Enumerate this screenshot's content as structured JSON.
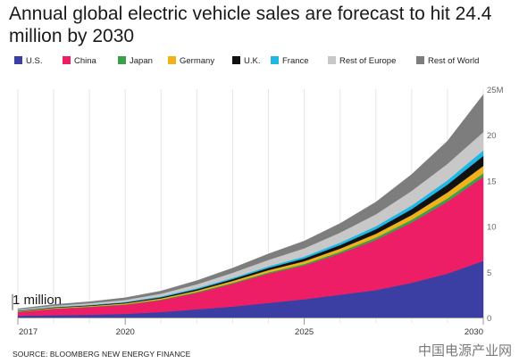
{
  "chart_data": {
    "type": "area",
    "stacked": true,
    "title": "Annual global electric vehicle sales are forecast to hit 24.4 million by 2030",
    "xlabel": "",
    "ylabel": "",
    "x": [
      2017,
      2018,
      2019,
      2020,
      2021,
      2022,
      2023,
      2024,
      2025,
      2026,
      2027,
      2028,
      2029,
      2030
    ],
    "xlim": [
      2017,
      2030
    ],
    "ylim": [
      0,
      25
    ],
    "x_ticks": [
      "2017",
      "2020",
      "2025",
      "2030"
    ],
    "y_ticks": [
      "0",
      "5",
      "10",
      "15",
      "20",
      "25M"
    ],
    "grid": "vertical",
    "legend_position": "top",
    "annotation": "1 million",
    "series": [
      {
        "name": "U.S.",
        "color": "#3b3ea3",
        "values": [
          0.2,
          0.25,
          0.3,
          0.4,
          0.6,
          0.9,
          1.2,
          1.6,
          2.0,
          2.5,
          3.0,
          3.8,
          4.8,
          6.2
        ]
      },
      {
        "name": "China",
        "color": "#ee1e66",
        "values": [
          0.4,
          0.7,
          0.85,
          1.0,
          1.3,
          1.8,
          2.5,
          3.2,
          3.7,
          4.5,
          5.5,
          6.6,
          7.9,
          9.2
        ]
      },
      {
        "name": "Japan",
        "color": "#3aa04a",
        "values": [
          0.03,
          0.04,
          0.04,
          0.05,
          0.07,
          0.09,
          0.11,
          0.14,
          0.16,
          0.2,
          0.25,
          0.3,
          0.35,
          0.4
        ]
      },
      {
        "name": "Germany",
        "color": "#f0b21a",
        "values": [
          0.05,
          0.07,
          0.08,
          0.1,
          0.13,
          0.16,
          0.2,
          0.25,
          0.3,
          0.35,
          0.42,
          0.52,
          0.65,
          0.8
        ]
      },
      {
        "name": "U.K.",
        "color": "#111111",
        "values": [
          0.05,
          0.06,
          0.07,
          0.09,
          0.12,
          0.15,
          0.2,
          0.24,
          0.3,
          0.38,
          0.5,
          0.65,
          0.85,
          1.1
        ]
      },
      {
        "name": "France",
        "color": "#1fb7e6",
        "values": [
          0.03,
          0.04,
          0.05,
          0.07,
          0.09,
          0.12,
          0.14,
          0.18,
          0.22,
          0.27,
          0.33,
          0.4,
          0.48,
          0.6
        ]
      },
      {
        "name": "Rest of Europe",
        "color": "#c8c8c8",
        "values": [
          0.1,
          0.13,
          0.17,
          0.22,
          0.3,
          0.42,
          0.55,
          0.7,
          0.9,
          1.1,
          1.3,
          1.6,
          1.8,
          2.0
        ]
      },
      {
        "name": "Rest of World",
        "color": "#7d7d7d",
        "values": [
          0.1,
          0.14,
          0.18,
          0.24,
          0.3,
          0.4,
          0.52,
          0.66,
          0.8,
          1.0,
          1.35,
          1.8,
          2.5,
          4.1
        ]
      }
    ]
  },
  "source": "SOURCE: BLOOMBERG NEW ENERGY FINANCE",
  "watermark": "中国电源产业网"
}
